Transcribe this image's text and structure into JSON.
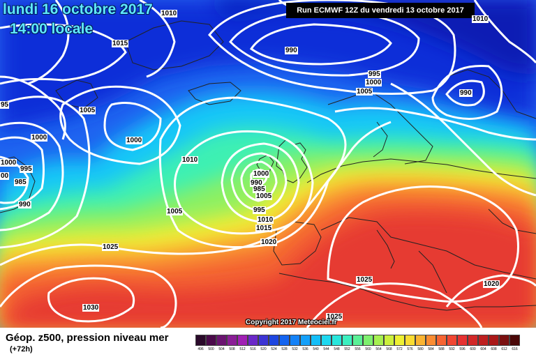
{
  "header": {
    "date": "lundi 16 octobre 2017",
    "time": "14:00 locale",
    "run": "Run ECMWF 12Z du vendredi 13 octobre 2017"
  },
  "footer": {
    "field_title": "Géop. z500, pression niveau mer",
    "lead_time": "(+72h)",
    "copyright": "Copyright 2017 Meteociel.fr"
  },
  "isobar_labels": [
    "1015",
    "990",
    "995",
    "1000",
    "1005",
    "1010",
    "990",
    "1005",
    "1000",
    "1000",
    "1010",
    "1000",
    "995",
    "985",
    "990",
    "990",
    "1000",
    "985",
    "1005",
    "1005",
    "995",
    "1010",
    "1015",
    "1020",
    "1025",
    "1025",
    "1030",
    "1025",
    "1020",
    "1010",
    "95",
    "00"
  ],
  "color_scale": {
    "labels": [
      "496",
      "500",
      "504",
      "508",
      "512",
      "516",
      "520",
      "524",
      "528",
      "532",
      "536",
      "540",
      "544",
      "548",
      "552",
      "556",
      "560",
      "564",
      "568",
      "572",
      "576",
      "580",
      "584",
      "588",
      "592",
      "596",
      "600",
      "604",
      "608",
      "612",
      "616"
    ],
    "colors": [
      "#2a0a2a",
      "#4a0a4a",
      "#6a1470",
      "#8a1e96",
      "#a020b4",
      "#6a28c8",
      "#3c34d4",
      "#1e46e0",
      "#1464f0",
      "#1482f8",
      "#14a0fa",
      "#14bef8",
      "#1ed8f0",
      "#28e6dc",
      "#3cf0c0",
      "#5af096",
      "#7ef06e",
      "#a6f050",
      "#ccf03c",
      "#eef032",
      "#fadc32",
      "#fab432",
      "#fa8c32",
      "#f66432",
      "#f04632",
      "#e63232",
      "#d22828",
      "#be2020",
      "#aa1818",
      "#7a1010",
      "#4a0808"
    ],
    "unit": "dam"
  }
}
